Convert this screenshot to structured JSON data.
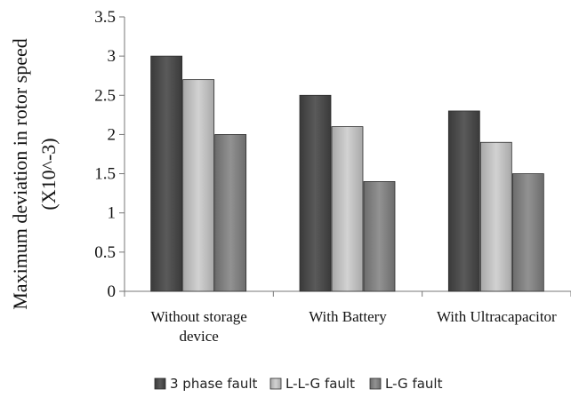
{
  "chart_data": {
    "type": "bar",
    "title": "",
    "ylabel": "Maximum deviation in rotor speed",
    "ylabel_line2": "(X10^-3)",
    "xlabel": "",
    "ylim": [
      0,
      3.5
    ],
    "yticks": [
      "0",
      "0.5",
      "1",
      "1.5",
      "2",
      "2.5",
      "3",
      "3.5"
    ],
    "categories": [
      [
        "Without storage",
        "device"
      ],
      [
        "With Battery"
      ],
      [
        "With Ultracapacitor"
      ]
    ],
    "series": [
      {
        "name": "3 phase fault",
        "values": [
          3.0,
          2.5,
          2.3
        ],
        "color": "#4a4a4a"
      },
      {
        "name": "L-L-G fault",
        "values": [
          2.7,
          2.1,
          1.9
        ],
        "color": "#bdbdbd"
      },
      {
        "name": "L-G fault",
        "values": [
          2.0,
          1.4,
          1.5
        ],
        "color": "#808080"
      }
    ],
    "legend_position": "bottom",
    "grid": false
  }
}
